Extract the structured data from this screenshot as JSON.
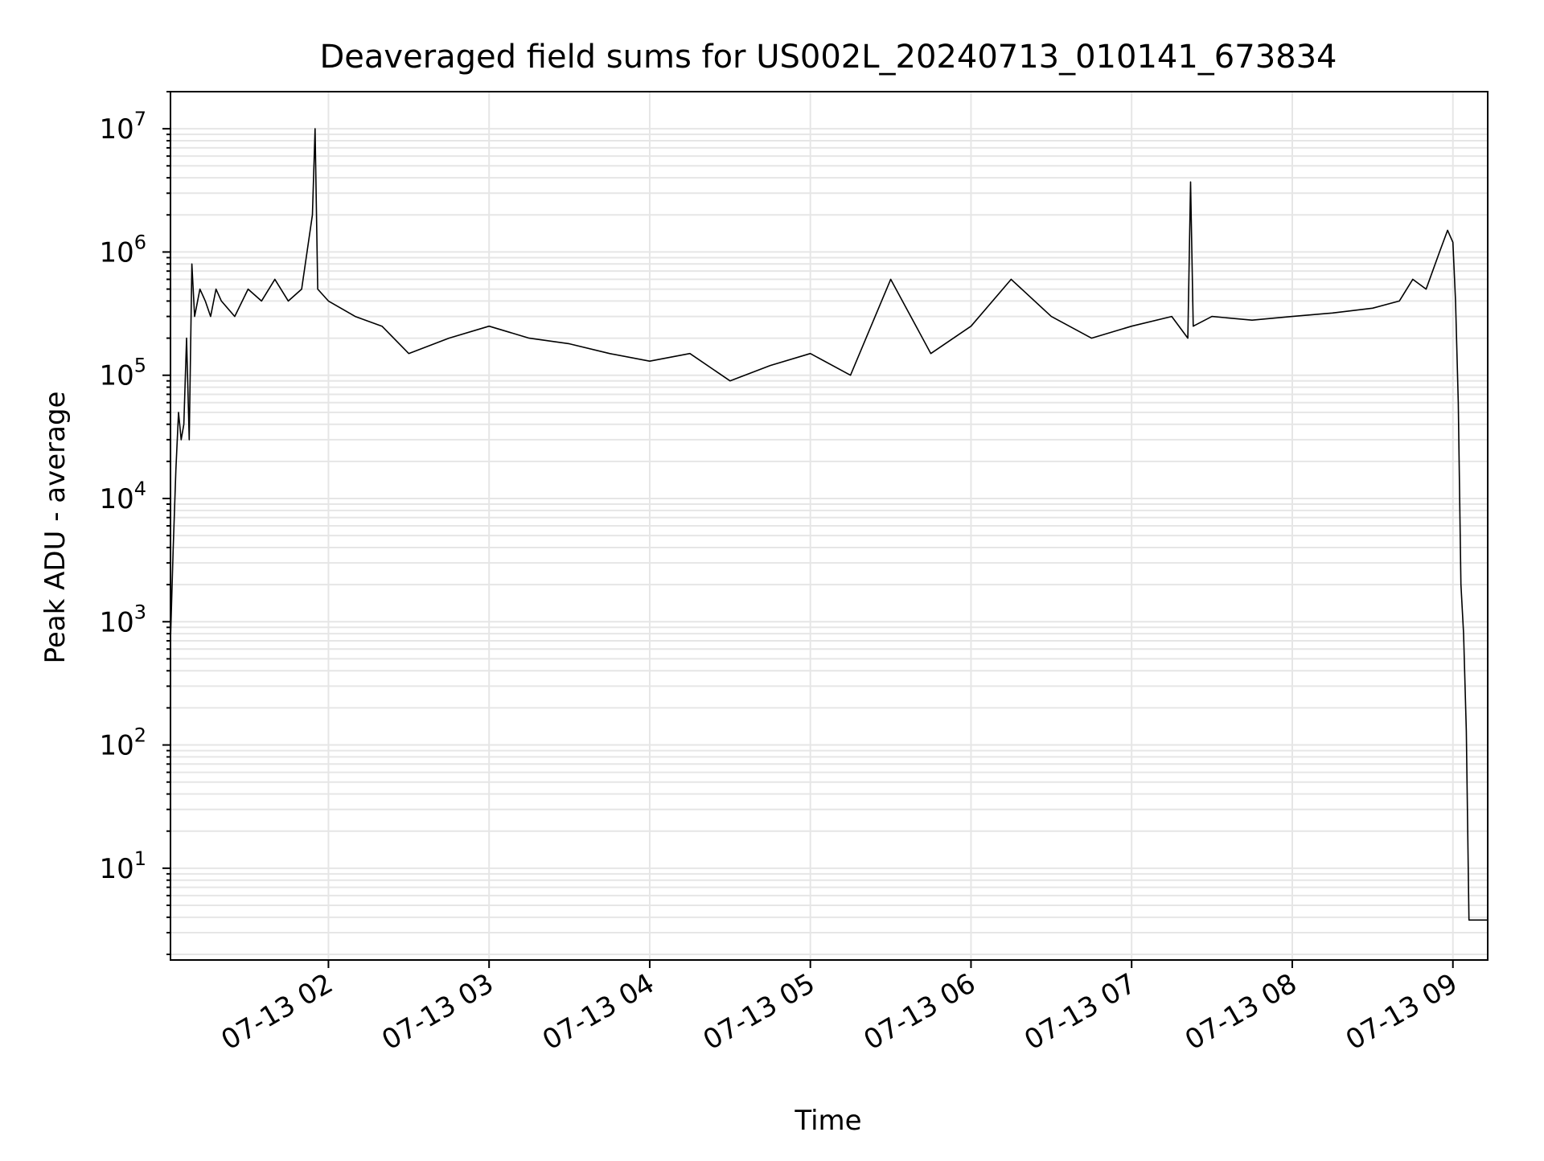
{
  "chart_data": {
    "type": "line",
    "title": "Deaveraged field sums for US002L_20240713_010141_673834",
    "xlabel": "Time",
    "ylabel": "Peak ADU - average",
    "x_axis": "time",
    "y_scale": "log",
    "grid": true,
    "xlim": [
      "2024-07-13 01:01",
      "2024-07-13 09:13"
    ],
    "ylim": [
      1.8,
      20000000
    ],
    "x_ticks": [
      "2024-07-13 02:00",
      "2024-07-13 03:00",
      "2024-07-13 04:00",
      "2024-07-13 05:00",
      "2024-07-13 06:00",
      "2024-07-13 07:00",
      "2024-07-13 08:00",
      "2024-07-13 09:00"
    ],
    "x_tick_labels": [
      "07-13 02",
      "07-13 03",
      "07-13 04",
      "07-13 05",
      "07-13 06",
      "07-13 07",
      "07-13 08",
      "07-13 09"
    ],
    "y_tick_labels": [
      {
        "base": "10",
        "exp": "1",
        "value": 10
      },
      {
        "base": "10",
        "exp": "2",
        "value": 100
      },
      {
        "base": "10",
        "exp": "3",
        "value": 1000
      },
      {
        "base": "10",
        "exp": "4",
        "value": 10000
      },
      {
        "base": "10",
        "exp": "5",
        "value": 100000
      },
      {
        "base": "10",
        "exp": "6",
        "value": 1000000
      },
      {
        "base": "10",
        "exp": "7",
        "value": 10000000
      }
    ],
    "line_color": "#000000",
    "grid_color": "#e6e6e6",
    "series": [
      {
        "x": [
          "2024-07-13 01:01",
          "2024-07-13 01:02",
          "2024-07-13 01:03",
          "2024-07-13 01:04",
          "2024-07-13 01:05",
          "2024-07-13 01:06",
          "2024-07-13 01:07",
          "2024-07-13 01:08",
          "2024-07-13 01:09",
          "2024-07-13 01:10",
          "2024-07-13 01:12",
          "2024-07-13 01:14",
          "2024-07-13 01:16",
          "2024-07-13 01:18",
          "2024-07-13 01:20",
          "2024-07-13 01:25",
          "2024-07-13 01:30",
          "2024-07-13 01:35",
          "2024-07-13 01:40",
          "2024-07-13 01:45",
          "2024-07-13 01:50",
          "2024-07-13 01:54",
          "2024-07-13 01:55",
          "2024-07-13 01:56",
          "2024-07-13 02:00",
          "2024-07-13 02:10",
          "2024-07-13 02:20",
          "2024-07-13 02:30",
          "2024-07-13 02:45",
          "2024-07-13 03:00",
          "2024-07-13 03:15",
          "2024-07-13 03:30",
          "2024-07-13 03:45",
          "2024-07-13 04:00",
          "2024-07-13 04:15",
          "2024-07-13 04:30",
          "2024-07-13 04:45",
          "2024-07-13 05:00",
          "2024-07-13 05:15",
          "2024-07-13 05:30",
          "2024-07-13 05:45",
          "2024-07-13 06:00",
          "2024-07-13 06:15",
          "2024-07-13 06:30",
          "2024-07-13 06:45",
          "2024-07-13 07:00",
          "2024-07-13 07:15",
          "2024-07-13 07:21",
          "2024-07-13 07:22",
          "2024-07-13 07:23",
          "2024-07-13 07:30",
          "2024-07-13 07:45",
          "2024-07-13 08:00",
          "2024-07-13 08:15",
          "2024-07-13 08:30",
          "2024-07-13 08:40",
          "2024-07-13 08:45",
          "2024-07-13 08:50",
          "2024-07-13 08:55",
          "2024-07-13 08:58",
          "2024-07-13 09:00",
          "2024-07-13 09:01",
          "2024-07-13 09:02",
          "2024-07-13 09:03",
          "2024-07-13 09:04",
          "2024-07-13 09:05",
          "2024-07-13 09:06",
          "2024-07-13 09:07",
          "2024-07-13 09:13"
        ],
        "y": [
          700,
          3800,
          17000,
          50000,
          30000,
          40000,
          200000,
          30000,
          800000,
          300000,
          500000,
          400000,
          300000,
          500000,
          400000,
          300000,
          500000,
          400000,
          600000,
          400000,
          500000,
          2000000,
          10000000,
          500000,
          400000,
          300000,
          250000,
          150000,
          200000,
          250000,
          200000,
          180000,
          150000,
          130000,
          150000,
          90000,
          120000,
          150000,
          100000,
          600000,
          150000,
          250000,
          600000,
          300000,
          200000,
          250000,
          300000,
          200000,
          3700000,
          250000,
          300000,
          280000,
          300000,
          320000,
          350000,
          400000,
          600000,
          500000,
          1000000,
          1500000,
          1200000,
          400000,
          60000,
          2000,
          800,
          130,
          3.8,
          3.8,
          3.8
        ]
      }
    ]
  }
}
